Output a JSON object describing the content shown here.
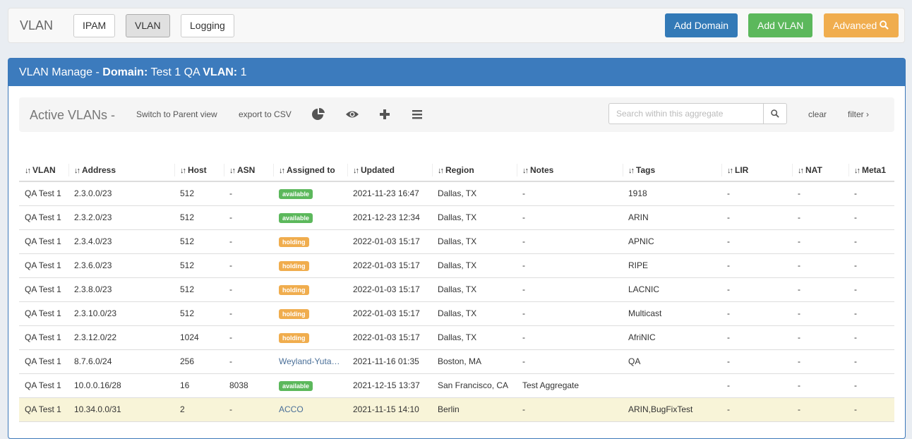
{
  "nav": {
    "brand": "VLAN",
    "tabs": [
      {
        "label": "IPAM"
      },
      {
        "label": "VLAN",
        "active": true
      },
      {
        "label": "Logging"
      }
    ],
    "actions": {
      "add_domain": "Add Domain",
      "add_vlan": "Add VLAN",
      "advanced": "Advanced"
    }
  },
  "colors": {
    "primary": "#337ab7",
    "success": "#5cb85c",
    "warning": "#f0ad4e",
    "panel_header": "#3c7bbd",
    "highlight_row": "#f8f4d8"
  },
  "panel": {
    "title_prefix": "VLAN Manage - ",
    "domain_label": "Domain:",
    "domain_value": " Test 1 QA ",
    "vlan_label": "VLAN:",
    "vlan_value": " 1"
  },
  "toolbar": {
    "title": "Active VLANs -",
    "switch_view": "Switch to Parent view",
    "export": "export to CSV",
    "icons": [
      "pie-chart-icon",
      "eye-icon",
      "plus-icon",
      "list-icon"
    ],
    "search_placeholder": "Search within this aggregate",
    "clear": "clear",
    "filter": "filter"
  },
  "table": {
    "columns": [
      "VLAN",
      "Address",
      "Host",
      "ASN",
      "Assigned to",
      "Updated",
      "Region",
      "Notes",
      "Tags",
      "LIR",
      "NAT",
      "Meta1"
    ],
    "rows": [
      {
        "vlan": "QA Test 1",
        "address": "2.3.0.0/23",
        "host": "512",
        "asn": "-",
        "assigned": {
          "type": "badge",
          "value": "available"
        },
        "updated": "2021-11-23 16:47",
        "region": "Dallas, TX",
        "notes": "-",
        "tags": "1918",
        "lir": "-",
        "nat": "-",
        "meta1": "-"
      },
      {
        "vlan": "QA Test 1",
        "address": "2.3.2.0/23",
        "host": "512",
        "asn": "-",
        "assigned": {
          "type": "badge",
          "value": "available"
        },
        "updated": "2021-12-23 12:34",
        "region": "Dallas, TX",
        "notes": "-",
        "tags": "ARIN",
        "lir": "-",
        "nat": "-",
        "meta1": "-"
      },
      {
        "vlan": "QA Test 1",
        "address": "2.3.4.0/23",
        "host": "512",
        "asn": "-",
        "assigned": {
          "type": "badge",
          "value": "holding"
        },
        "updated": "2022-01-03 15:17",
        "region": "Dallas, TX",
        "notes": "-",
        "tags": "APNIC",
        "lir": "-",
        "nat": "-",
        "meta1": "-"
      },
      {
        "vlan": "QA Test 1",
        "address": "2.3.6.0/23",
        "host": "512",
        "asn": "-",
        "assigned": {
          "type": "badge",
          "value": "holding"
        },
        "updated": "2022-01-03 15:17",
        "region": "Dallas, TX",
        "notes": "-",
        "tags": "RIPE",
        "lir": "-",
        "nat": "-",
        "meta1": "-"
      },
      {
        "vlan": "QA Test 1",
        "address": "2.3.8.0/23",
        "host": "512",
        "asn": "-",
        "assigned": {
          "type": "badge",
          "value": "holding"
        },
        "updated": "2022-01-03 15:17",
        "region": "Dallas, TX",
        "notes": "-",
        "tags": "LACNIC",
        "lir": "-",
        "nat": "-",
        "meta1": "-"
      },
      {
        "vlan": "QA Test 1",
        "address": "2.3.10.0/23",
        "host": "512",
        "asn": "-",
        "assigned": {
          "type": "badge",
          "value": "holding"
        },
        "updated": "2022-01-03 15:17",
        "region": "Dallas, TX",
        "notes": "-",
        "tags": "Multicast",
        "lir": "-",
        "nat": "-",
        "meta1": "-"
      },
      {
        "vlan": "QA Test 1",
        "address": "2.3.12.0/22",
        "host": "1024",
        "asn": "-",
        "assigned": {
          "type": "badge",
          "value": "holding"
        },
        "updated": "2022-01-03 15:17",
        "region": "Dallas, TX",
        "notes": "-",
        "tags": "AfriNIC",
        "lir": "-",
        "nat": "-",
        "meta1": "-"
      },
      {
        "vlan": "QA Test 1",
        "address": "8.7.6.0/24",
        "host": "256",
        "asn": "-",
        "assigned": {
          "type": "link",
          "value": "Weyland-Yuta…"
        },
        "updated": "2021-11-16 01:35",
        "region": "Boston, MA",
        "notes": "-",
        "tags": "QA",
        "lir": "-",
        "nat": "-",
        "meta1": "-"
      },
      {
        "vlan": "QA Test 1",
        "address": "10.0.0.16/28",
        "host": "16",
        "asn": "8038",
        "assigned": {
          "type": "badge",
          "value": "available"
        },
        "updated": "2021-12-15 13:37",
        "region": "San Francisco, CA",
        "notes": "Test Aggregate",
        "tags": "",
        "lir": "-",
        "nat": "-",
        "meta1": "-"
      },
      {
        "vlan": "QA Test 1",
        "address": "10.34.0.0/31",
        "host": "2",
        "asn": "-",
        "assigned": {
          "type": "link",
          "value": "ACCO"
        },
        "updated": "2021-11-15 14:10",
        "region": "Berlin",
        "notes": "-",
        "tags": "ARIN,BugFixTest",
        "lir": "-",
        "nat": "-",
        "meta1": "-",
        "highlighted": true
      }
    ]
  }
}
